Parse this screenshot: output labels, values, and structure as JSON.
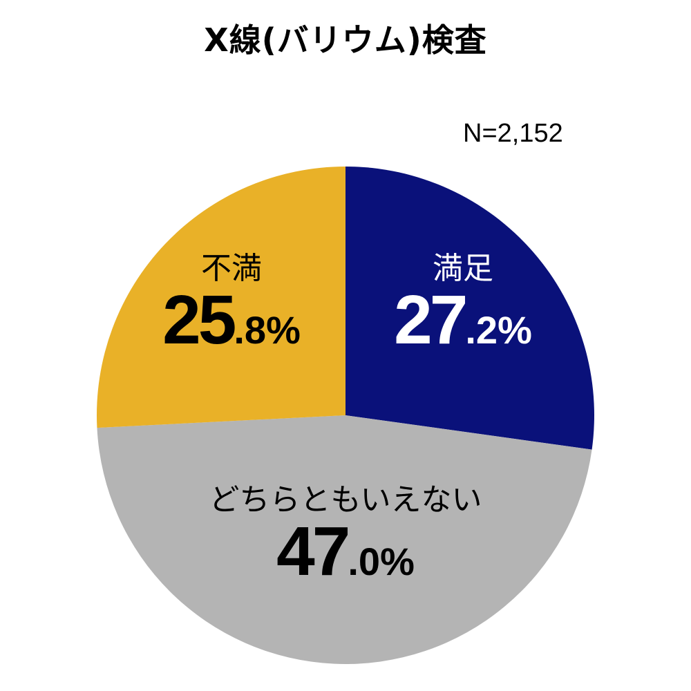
{
  "chart_data": {
    "type": "pie",
    "title": "X線(バリウム)検査",
    "annotation": "N=2,152",
    "start": "12 o'clock, clockwise",
    "slices": [
      {
        "label": "満足",
        "value": 27.2,
        "color": "#0a117a",
        "text_color": "#ffffff"
      },
      {
        "label": "どちらともいえない",
        "value": 47.0,
        "color": "#b4b4b4",
        "text_color": "#000000"
      },
      {
        "label": "不満",
        "value": 25.8,
        "color": "#e9b128",
        "text_color": "#000000"
      }
    ],
    "unit": "%"
  }
}
